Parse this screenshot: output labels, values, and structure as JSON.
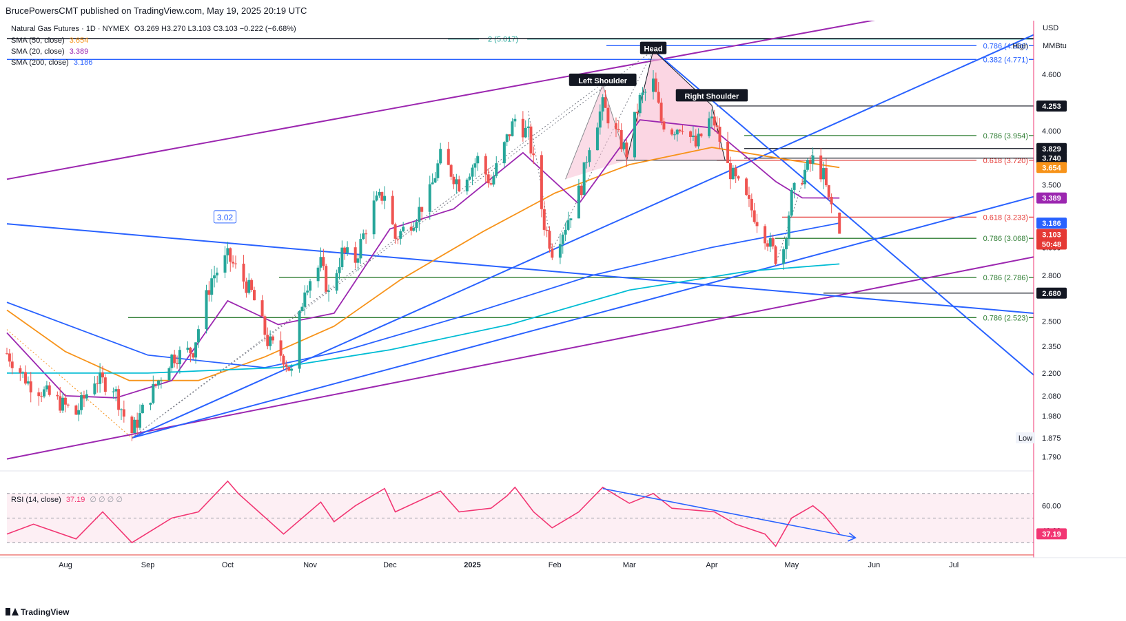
{
  "header": {
    "published": "BrucePowersCMT published on TradingView.com, May 19, 2025 20:19 UTC"
  },
  "legend": {
    "title": "Natural Gas Futures · 1D · NYMEX",
    "ohlc": "O3.269  H3.270  L3.103  C3.103  −0.222 (−6.68%)",
    "sma50_label": "SMA (50, close)",
    "sma50_value": "3.654",
    "sma20_label": "SMA (20, close)",
    "sma20_value": "3.389",
    "sma200_label": "SMA (200, close)",
    "sma200_value": "3.186"
  },
  "rsi_legend": {
    "label": "RSI (14, close)",
    "value": "37.19",
    "extra": "∅ ∅ ∅ ∅"
  },
  "footer": {
    "brand": "TradingView"
  },
  "colors": {
    "up": "#26a69a",
    "down": "#ef5350",
    "sma50": "#f7931a",
    "sma20": "#9c27b0",
    "sma200": "#2962ff",
    "sma100": "#00bcd4",
    "trend_blue": "#2962ff",
    "trend_purple": "#9c27b0",
    "fib_green": "#2e7d32",
    "fib_red": "#e53935",
    "rsi": "#f23673"
  },
  "chart_data": {
    "type": "candlestick",
    "symbol": "Natural Gas Futures",
    "timeframe": "1D",
    "exchange": "NYMEX",
    "currency": "USD",
    "unit": "MMBtu",
    "x_range": [
      "2024-07-10",
      "2025-07-31"
    ],
    "y_range": [
      1.74,
      5.25
    ],
    "y_scale": "log",
    "x_tick_labels": [
      {
        "label": "Aug",
        "date": "2024-08-01"
      },
      {
        "label": "Sep",
        "date": "2024-09-01"
      },
      {
        "label": "Oct",
        "date": "2024-10-01"
      },
      {
        "label": "Nov",
        "date": "2024-11-01"
      },
      {
        "label": "Dec",
        "date": "2024-12-01"
      },
      {
        "label": "2025",
        "date": "2025-01-01"
      },
      {
        "label": "Feb",
        "date": "2025-02-01"
      },
      {
        "label": "Mar",
        "date": "2025-03-01"
      },
      {
        "label": "Apr",
        "date": "2025-04-01"
      },
      {
        "label": "May",
        "date": "2025-05-01"
      },
      {
        "label": "Jun",
        "date": "2025-06-01"
      },
      {
        "label": "Jul",
        "date": "2025-07-01"
      }
    ],
    "y_tick_labels": [
      "4.600",
      "4.250",
      "4.000",
      "3.829",
      "3.500",
      "3.389",
      "3.000",
      "2.800",
      "2.680",
      "2.500",
      "2.350",
      "2.200",
      "2.080",
      "1.980",
      "1.875",
      "1.790"
    ],
    "price_anchors": [
      [
        "2024-07-10",
        2.31
      ],
      [
        "2024-07-18",
        2.15
      ],
      [
        "2024-07-26",
        2.08
      ],
      [
        "2024-08-05",
        1.99
      ],
      [
        "2024-08-12",
        2.17
      ],
      [
        "2024-08-19",
        2.13
      ],
      [
        "2024-08-23",
        1.98
      ],
      [
        "2024-08-26",
        1.9
      ],
      [
        "2024-09-03",
        2.11
      ],
      [
        "2024-09-10",
        2.29
      ],
      [
        "2024-09-18",
        2.33
      ],
      [
        "2024-09-25",
        2.78
      ],
      [
        "2024-10-01",
        2.93
      ],
      [
        "2024-10-04",
        2.85
      ],
      [
        "2024-10-10",
        2.68
      ],
      [
        "2024-10-16",
        2.38
      ],
      [
        "2024-10-22",
        2.29
      ],
      [
        "2024-10-25",
        2.2
      ],
      [
        "2024-10-30",
        2.73
      ],
      [
        "2024-11-05",
        2.88
      ],
      [
        "2024-11-08",
        2.67
      ],
      [
        "2024-11-13",
        2.96
      ],
      [
        "2024-11-18",
        2.91
      ],
      [
        "2024-11-25",
        3.33
      ],
      [
        "2024-11-29",
        3.43
      ],
      [
        "2024-12-03",
        3.07
      ],
      [
        "2024-12-10",
        3.22
      ],
      [
        "2024-12-16",
        3.43
      ],
      [
        "2024-12-20",
        3.75
      ],
      [
        "2024-12-27",
        3.51
      ],
      [
        "2025-01-03",
        3.73
      ],
      [
        "2025-01-08",
        3.51
      ],
      [
        "2025-01-14",
        3.92
      ],
      [
        "2025-01-17",
        4.12
      ],
      [
        "2025-01-22",
        3.96
      ],
      [
        "2025-01-28",
        3.18
      ],
      [
        "2025-01-31",
        2.98
      ],
      [
        "2025-02-05",
        3.17
      ],
      [
        "2025-02-11",
        3.49
      ],
      [
        "2025-02-14",
        3.88
      ],
      [
        "2025-02-19",
        4.26
      ],
      [
        "2025-02-24",
        3.97
      ],
      [
        "2025-02-28",
        3.79
      ],
      [
        "2025-03-05",
        4.32
      ],
      [
        "2025-03-10",
        4.5
      ],
      [
        "2025-03-13",
        4.1
      ],
      [
        "2025-03-17",
        4.01
      ],
      [
        "2025-03-21",
        4.07
      ],
      [
        "2025-03-26",
        3.85
      ],
      [
        "2025-03-31",
        4.1
      ],
      [
        "2025-04-02",
        4.08
      ],
      [
        "2025-04-07",
        3.66
      ],
      [
        "2025-04-10",
        3.53
      ],
      [
        "2025-04-15",
        3.33
      ],
      [
        "2025-04-21",
        3.1
      ],
      [
        "2025-04-25",
        2.93
      ],
      [
        "2025-04-28",
        3.0
      ],
      [
        "2025-05-01",
        3.4
      ],
      [
        "2025-05-06",
        3.62
      ],
      [
        "2025-05-09",
        3.72
      ],
      [
        "2025-05-13",
        3.58
      ],
      [
        "2025-05-15",
        3.36
      ],
      [
        "2025-05-16",
        3.325
      ],
      [
        "2025-05-19",
        3.103
      ]
    ],
    "last_bar": {
      "date": "2025-05-19",
      "open": 3.269,
      "high": 3.27,
      "low": 3.103,
      "close": 3.103
    },
    "series": [
      {
        "name": "SMA (50, close)",
        "last": 3.654,
        "anchors": [
          [
            "2024-07-10",
            2.57
          ],
          [
            "2024-08-01",
            2.32
          ],
          [
            "2024-08-25",
            2.16
          ],
          [
            "2024-09-20",
            2.16
          ],
          [
            "2024-10-15",
            2.29
          ],
          [
            "2024-11-10",
            2.47
          ],
          [
            "2024-12-05",
            2.77
          ],
          [
            "2025-01-05",
            3.12
          ],
          [
            "2025-02-01",
            3.43
          ],
          [
            "2025-03-01",
            3.68
          ],
          [
            "2025-04-01",
            3.84
          ],
          [
            "2025-05-01",
            3.72
          ],
          [
            "2025-05-19",
            3.654
          ]
        ]
      },
      {
        "name": "SMA (20, close)",
        "last": 3.389,
        "anchors": [
          [
            "2024-07-10",
            2.43
          ],
          [
            "2024-08-01",
            2.08
          ],
          [
            "2024-08-20",
            2.07
          ],
          [
            "2024-09-10",
            2.16
          ],
          [
            "2024-10-01",
            2.63
          ],
          [
            "2024-10-20",
            2.48
          ],
          [
            "2024-11-10",
            2.55
          ],
          [
            "2024-12-01",
            3.14
          ],
          [
            "2024-12-25",
            3.3
          ],
          [
            "2025-01-20",
            3.79
          ],
          [
            "2025-02-10",
            3.34
          ],
          [
            "2025-03-05",
            4.11
          ],
          [
            "2025-04-01",
            4.03
          ],
          [
            "2025-04-25",
            3.53
          ],
          [
            "2025-05-05",
            3.39
          ],
          [
            "2025-05-19",
            3.389
          ]
        ]
      },
      {
        "name": "SMA (200, close)",
        "last": 3.186,
        "anchors": [
          [
            "2024-07-10",
            2.62
          ],
          [
            "2024-09-01",
            2.3
          ],
          [
            "2024-10-15",
            2.23
          ],
          [
            "2024-11-15",
            2.33
          ],
          [
            "2025-01-01",
            2.55
          ],
          [
            "2025-02-15",
            2.8
          ],
          [
            "2025-04-01",
            3.0
          ],
          [
            "2025-05-19",
            3.186
          ]
        ]
      },
      {
        "name": "",
        "anchors": [
          [
            "2024-07-10",
            2.2
          ],
          [
            "2024-09-01",
            2.2
          ],
          [
            "2024-10-20",
            2.23
          ],
          [
            "2024-12-01",
            2.33
          ],
          [
            "2025-01-15",
            2.48
          ],
          [
            "2025-03-01",
            2.7
          ],
          [
            "2025-04-15",
            2.83
          ],
          [
            "2025-05-19",
            2.88
          ]
        ]
      }
    ],
    "annotations": [
      {
        "text": "Head",
        "date": "2025-03-10",
        "price": 4.9
      },
      {
        "text": "Left Shoulder",
        "date": "2025-02-19",
        "price": 4.53
      },
      {
        "text": "Right Shoulder",
        "date": "2025-04-01",
        "price": 4.36
      },
      {
        "text": "3.02",
        "date": "2024-09-30",
        "price": 3.23
      }
    ],
    "fib_levels": [
      {
        "label": "2 (5.017)",
        "price": 5.017
      },
      {
        "label": "0.786 (4.936)",
        "price": 4.936
      },
      {
        "label": "0.382 (4.771)",
        "price": 4.771
      },
      {
        "label": "0.786 (3.954)",
        "price": 3.954
      },
      {
        "label": "0.618 (3.720)",
        "price": 3.72
      },
      {
        "label": "0.618 (3.233)",
        "price": 3.233
      },
      {
        "label": "0.786 (3.068)",
        "price": 3.068
      },
      {
        "label": "0.786 (2.786)",
        "price": 2.786
      },
      {
        "label": "0.786 (2.523)",
        "price": 2.523
      }
    ],
    "horizontal_levels": [
      4.253,
      3.829,
      3.74,
      2.68
    ],
    "price_badges": [
      {
        "text": "4.253",
        "kind": "dark"
      },
      {
        "text": "3.829",
        "kind": "dark"
      },
      {
        "text": "3.740",
        "kind": "dark"
      },
      {
        "text": "3.654",
        "kind": "orange"
      },
      {
        "text": "3.389",
        "kind": "purple"
      },
      {
        "text": "3.186",
        "kind": "blue"
      },
      {
        "text": "3.103",
        "kind": "red"
      },
      {
        "text": "50:48",
        "kind": "red"
      },
      {
        "text": "2.680",
        "kind": "dark"
      }
    ],
    "high_label": "High",
    "low_label": "Low",
    "low_value": "1.875",
    "axis_unit": "USD",
    "axis_unit_sub": "MMBtu",
    "rsi": {
      "name": "RSI (14, close)",
      "last": 37.19,
      "y_range": [
        20,
        85
      ],
      "y_tick_labels": [
        "60.00",
        "40.00"
      ],
      "levels": [
        70,
        50,
        30
      ],
      "anchors": [
        [
          "2024-07-10",
          37
        ],
        [
          "2024-07-20",
          45
        ],
        [
          "2024-08-05",
          33
        ],
        [
          "2024-08-15",
          55
        ],
        [
          "2024-08-26",
          30
        ],
        [
          "2024-09-10",
          50
        ],
        [
          "2024-09-20",
          55
        ],
        [
          "2024-10-01",
          80
        ],
        [
          "2024-10-05",
          70
        ],
        [
          "2024-10-22",
          37
        ],
        [
          "2024-11-05",
          63
        ],
        [
          "2024-11-10",
          47
        ],
        [
          "2024-11-18",
          60
        ],
        [
          "2024-11-29",
          74
        ],
        [
          "2024-12-03",
          55
        ],
        [
          "2024-12-20",
          72
        ],
        [
          "2024-12-27",
          55
        ],
        [
          "2025-01-08",
          58
        ],
        [
          "2025-01-14",
          68
        ],
        [
          "2025-01-17",
          75
        ],
        [
          "2025-01-24",
          55
        ],
        [
          "2025-01-31",
          42
        ],
        [
          "2025-02-10",
          55
        ],
        [
          "2025-02-19",
          75
        ],
        [
          "2025-03-01",
          62
        ],
        [
          "2025-03-10",
          70
        ],
        [
          "2025-03-17",
          58
        ],
        [
          "2025-04-02",
          55
        ],
        [
          "2025-04-10",
          45
        ],
        [
          "2025-04-21",
          37
        ],
        [
          "2025-04-25",
          27
        ],
        [
          "2025-05-01",
          50
        ],
        [
          "2025-05-09",
          60
        ],
        [
          "2025-05-13",
          53
        ],
        [
          "2025-05-19",
          37.19
        ]
      ]
    }
  }
}
